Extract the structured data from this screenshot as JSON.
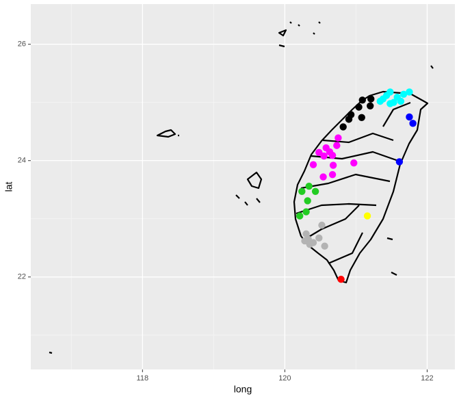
{
  "chart_data": {
    "type": "scatter",
    "x_label": "long",
    "y_label": "lat",
    "xlim": [
      116.43,
      122.39
    ],
    "ylim": [
      20.41,
      26.69
    ],
    "xticks": [
      118,
      120,
      122
    ],
    "yticks": [
      22,
      24,
      26
    ],
    "grid": true,
    "series": [
      {
        "color": "#000000",
        "x": [
          120.82,
          121.04,
          121.2,
          121.08,
          120.93,
          120.9,
          121.09,
          121.21
        ],
        "y": [
          24.58,
          24.92,
          24.94,
          24.74,
          24.79,
          24.71,
          25.04,
          25.06
        ]
      },
      {
        "color": "#00ffff",
        "x": [
          121.34,
          121.43,
          121.48,
          121.53,
          121.58,
          121.67,
          121.75,
          121.38,
          121.48,
          121.63
        ],
        "y": [
          25.02,
          25.12,
          25.18,
          25.0,
          25.09,
          25.14,
          25.18,
          25.06,
          24.98,
          25.02
        ]
      },
      {
        "color": "#0000ff",
        "x": [
          121.75,
          121.8,
          121.61
        ],
        "y": [
          24.75,
          24.64,
          23.98
        ]
      },
      {
        "color": "#ff00ff",
        "x": [
          120.75,
          120.73,
          120.58,
          120.48,
          120.55,
          120.67,
          120.63,
          120.97,
          120.68,
          120.4,
          120.67,
          120.54
        ],
        "y": [
          24.39,
          24.26,
          24.22,
          24.14,
          24.08,
          24.09,
          24.15,
          23.96,
          23.92,
          23.93,
          23.76,
          23.72
        ]
      },
      {
        "color": "#22cc22",
        "x": [
          120.34,
          120.24,
          120.43,
          120.32,
          120.3,
          120.21
        ],
        "y": [
          23.56,
          23.47,
          23.47,
          23.31,
          23.12,
          23.05
        ]
      },
      {
        "color": "#b3b3b3",
        "x": [
          120.52,
          120.3,
          120.33,
          120.48,
          120.4,
          120.56,
          120.28,
          120.35
        ],
        "y": [
          22.89,
          22.74,
          22.65,
          22.67,
          22.59,
          22.53,
          22.62,
          22.56
        ]
      },
      {
        "color": "#ffff00",
        "x": [
          121.16
        ],
        "y": [
          23.05
        ]
      },
      {
        "color": "#ff0000",
        "x": [
          120.79
        ],
        "y": [
          21.96
        ]
      }
    ]
  }
}
